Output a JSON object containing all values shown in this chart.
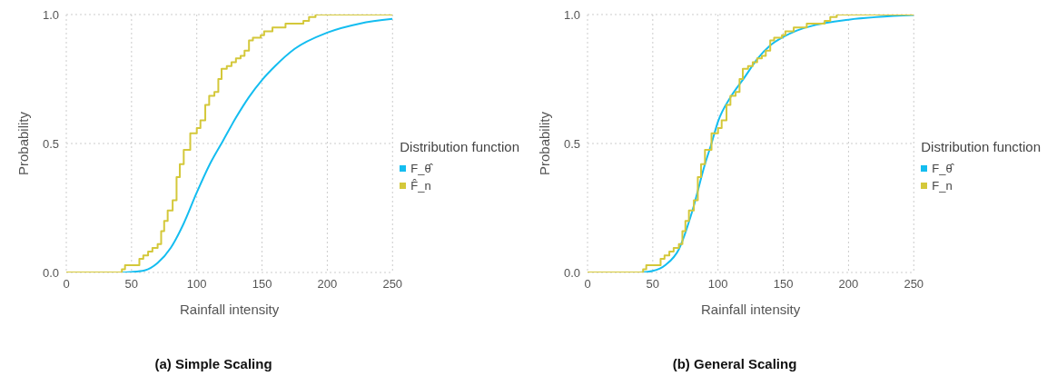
{
  "chart_data": [
    {
      "type": "line",
      "title": "(a) Simple Scaling",
      "xlabel": "Rainfall intensity",
      "ylabel": "Probability",
      "legend_title": "Distribution function",
      "legend": "right",
      "grid": true,
      "xlim": [
        0,
        250
      ],
      "ylim": [
        0,
        1
      ],
      "xticks": [
        0,
        50,
        100,
        150,
        200,
        250
      ],
      "yticks": [
        {
          "value": 0,
          "label": "0.0"
        },
        {
          "value": 0.5,
          "label": "0.5"
        },
        {
          "value": 1,
          "label": "1.0"
        }
      ],
      "series": [
        {
          "name": "F_θ̂",
          "color": "#14bdf0",
          "x": [
            0,
            40,
            50,
            60,
            70,
            80,
            90,
            100,
            110,
            120,
            130,
            140,
            150,
            160,
            175,
            200,
            225,
            250
          ],
          "values": [
            0,
            0,
            0.002,
            0.008,
            0.037,
            0.095,
            0.19,
            0.31,
            0.42,
            0.51,
            0.6,
            0.68,
            0.746,
            0.8,
            0.867,
            0.93,
            0.965,
            0.983
          ]
        },
        {
          "name": "F̂_n",
          "type": "step",
          "color": "#d4c83a",
          "x": [
            0,
            42.6,
            45,
            56,
            59,
            62.7,
            66,
            70,
            72.7,
            75,
            77.7,
            81.5,
            84.5,
            87,
            90,
            95,
            100,
            102.8,
            106.5,
            109.5,
            113.5,
            116.5,
            119,
            123,
            126.6,
            130,
            133.6,
            136.6,
            140,
            143,
            149,
            151.6,
            158,
            168,
            181.7,
            186,
            191,
            250
          ],
          "values": [
            0,
            0.012,
            0.028,
            0.053,
            0.066,
            0.081,
            0.095,
            0.11,
            0.16,
            0.2,
            0.24,
            0.28,
            0.37,
            0.42,
            0.475,
            0.54,
            0.56,
            0.59,
            0.65,
            0.685,
            0.7,
            0.75,
            0.79,
            0.8,
            0.815,
            0.83,
            0.84,
            0.86,
            0.9,
            0.91,
            0.92,
            0.935,
            0.95,
            0.965,
            0.975,
            0.99,
            1,
            1
          ]
        }
      ]
    },
    {
      "type": "line",
      "title": "(b) General Scaling",
      "xlabel": "Rainfall intensity",
      "ylabel": "Probability",
      "legend_title": "Distribution function",
      "legend": "right",
      "grid": true,
      "xlim": [
        0,
        250
      ],
      "ylim": [
        0,
        1
      ],
      "xticks": [
        0,
        50,
        100,
        150,
        200,
        250
      ],
      "yticks": [
        {
          "value": 0,
          "label": "0.0"
        },
        {
          "value": 0.5,
          "label": "0.5"
        },
        {
          "value": 1,
          "label": "1.0"
        }
      ],
      "series": [
        {
          "name": "F_θ̂",
          "color": "#14bdf0",
          "x": [
            0,
            40,
            50,
            60,
            70,
            80,
            90,
            95,
            100,
            110,
            120,
            130,
            140,
            150,
            160,
            175,
            200,
            250
          ],
          "values": [
            0,
            0,
            0.006,
            0.03,
            0.09,
            0.233,
            0.42,
            0.5,
            0.585,
            0.683,
            0.754,
            0.827,
            0.88,
            0.913,
            0.937,
            0.96,
            0.98,
            0.998
          ]
        },
        {
          "name": "F_n",
          "type": "step",
          "color": "#d4c83a",
          "x": [
            0,
            42.6,
            45,
            56,
            59,
            62.7,
            66,
            70,
            72.7,
            75,
            77.7,
            81.5,
            84.5,
            87,
            90,
            95,
            100,
            102.8,
            106.5,
            109.5,
            113.5,
            116.5,
            119,
            123,
            126.6,
            130,
            133.6,
            136.6,
            140,
            143,
            149,
            151.6,
            158,
            168,
            181.7,
            186,
            191,
            250
          ],
          "values": [
            0,
            0.012,
            0.028,
            0.053,
            0.066,
            0.081,
            0.095,
            0.11,
            0.16,
            0.2,
            0.24,
            0.28,
            0.37,
            0.42,
            0.475,
            0.54,
            0.56,
            0.59,
            0.65,
            0.685,
            0.7,
            0.75,
            0.79,
            0.8,
            0.815,
            0.83,
            0.84,
            0.86,
            0.9,
            0.91,
            0.92,
            0.935,
            0.95,
            0.965,
            0.975,
            0.99,
            1,
            1
          ]
        }
      ]
    }
  ]
}
